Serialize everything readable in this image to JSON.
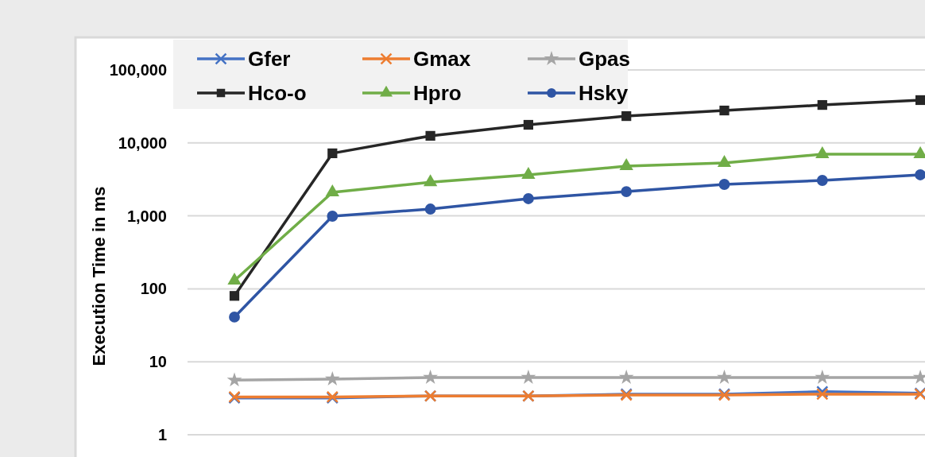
{
  "chart_data": {
    "type": "line",
    "ylabel": "Execution Time in ms",
    "categories": [
      null,
      null,
      null,
      null,
      null,
      null,
      null,
      null
    ],
    "series": [
      {
        "name": "Gfer",
        "color": "#4472c4",
        "marker": "cross",
        "values": [
          3.2,
          3.2,
          3.4,
          3.4,
          3.6,
          3.6,
          3.9,
          3.7
        ]
      },
      {
        "name": "Gmax",
        "color": "#ed7d31",
        "marker": "cross",
        "values": [
          3.3,
          3.3,
          3.4,
          3.4,
          3.5,
          3.5,
          3.6,
          3.6
        ]
      },
      {
        "name": "Gpas",
        "color": "#a5a5a5",
        "marker": "star",
        "values": [
          5.6,
          5.8,
          6.1,
          6.1,
          6.1,
          6.1,
          6.1,
          6.1
        ]
      },
      {
        "name": "Hco-o",
        "color": "#262626",
        "marker": "square",
        "values": [
          80,
          7200,
          12500,
          17700,
          23300,
          27800,
          33100,
          38600
        ]
      },
      {
        "name": "Hpro",
        "color": "#70ad47",
        "marker": "triangle",
        "values": [
          130,
          2100,
          2900,
          3650,
          4800,
          5300,
          7000,
          7000
        ]
      },
      {
        "name": "Hsky",
        "color": "#2f55a4",
        "marker": "circle",
        "values": [
          41,
          990,
          1240,
          1720,
          2150,
          2700,
          3060,
          3650
        ]
      }
    ],
    "log": true,
    "ylim": [
      1,
      100000
    ],
    "yticks": [
      1,
      10,
      100,
      {
        "value": 1000,
        "label": "1,000"
      },
      {
        "value": 10000,
        "label": "10,000"
      },
      {
        "value": 100000,
        "label": "100,000"
      }
    ],
    "grid": "y",
    "legend": "top left"
  }
}
